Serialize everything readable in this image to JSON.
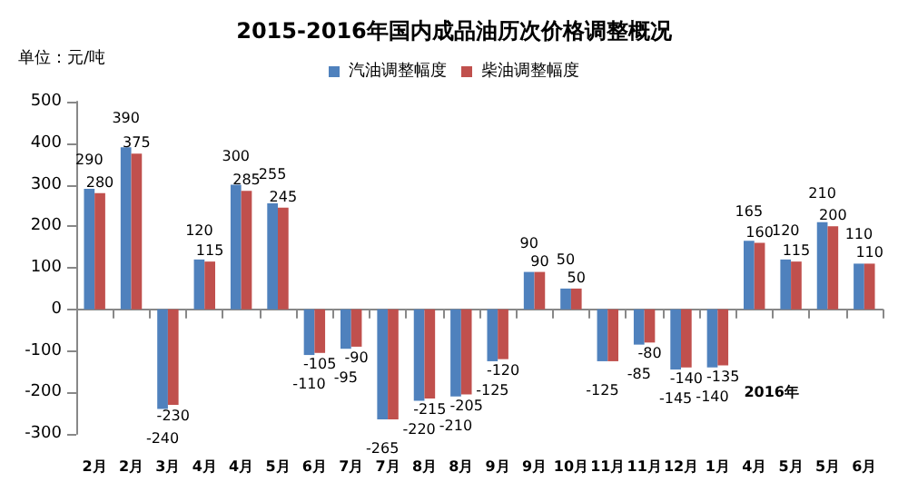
{
  "chart_data": {
    "type": "bar",
    "title": "2015-2016年国内成品油历次价格调整概况",
    "categories": [
      "2月",
      "2月",
      "3月",
      "4月",
      "4月",
      "5月",
      "6月",
      "7月",
      "7月",
      "8月",
      "8月",
      "9月",
      "9月",
      "10月",
      "11月",
      "11月",
      "12月",
      "1月",
      "4月",
      "5月",
      "5月",
      "6月"
    ],
    "series": [
      {
        "name": "汽油调整幅度",
        "color": "#4f81bd",
        "values": [
          290,
          390,
          -240,
          120,
          300,
          255,
          -110,
          -95,
          -265,
          -220,
          -210,
          -125,
          90,
          50,
          -125,
          -85,
          -145,
          -140,
          165,
          120,
          210,
          110
        ],
        "value_labels": [
          "290",
          "390",
          "-240",
          "120",
          "300",
          "255",
          "-110",
          "-95",
          "-265",
          "-220",
          "-210",
          "-125",
          "90",
          "50",
          "-125",
          "-85",
          "-145",
          "-140",
          "165",
          "120",
          "210",
          "110"
        ]
      },
      {
        "name": "柴油调整幅度",
        "color": "#c0504d",
        "values": [
          280,
          375,
          -230,
          115,
          285,
          245,
          -105,
          -90,
          -265,
          -215,
          -205,
          -120,
          90,
          50,
          -125,
          -80,
          -140,
          -135,
          160,
          115,
          200,
          110
        ],
        "value_labels": [
          "280",
          "375",
          "-230",
          "115",
          "285",
          "245",
          "-105",
          "-90",
          null,
          "-215",
          "-205",
          "-120",
          "90",
          "50",
          null,
          "-80",
          "-140",
          "-135",
          "160",
          "115",
          "200",
          "110"
        ]
      }
    ],
    "ylim": [
      -300,
      500
    ],
    "yticks": [
      -300,
      -200,
      -100,
      0,
      100,
      200,
      300,
      400,
      500
    ],
    "legend": "top",
    "annotations": [
      "单位：元/吨",
      "2016年"
    ]
  }
}
